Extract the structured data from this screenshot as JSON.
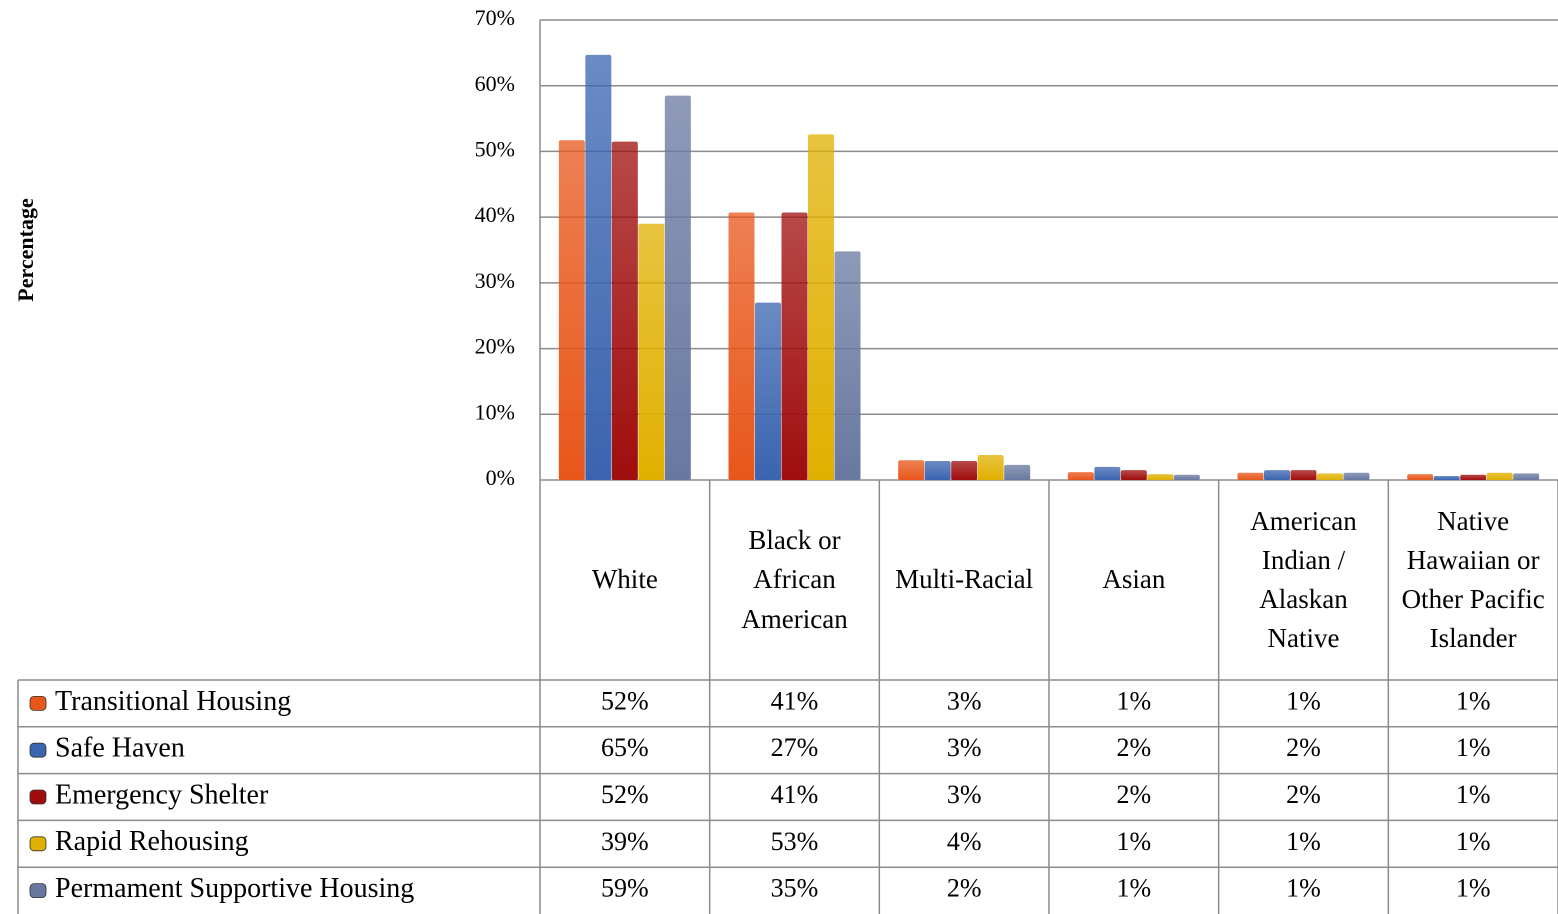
{
  "chart_data": {
    "type": "bar",
    "y_axis_label": "Percentage",
    "categories": [
      "White",
      "Black or African American",
      "Multi-Racial",
      "Asian",
      "American Indian / Alaskan Native",
      "Native Hawaiian or Other Pacific Islander"
    ],
    "series": [
      {
        "name": "Transitional Housing",
        "color": "#e8561a",
        "values": [
          51.7,
          40.7,
          3.0,
          1.2,
          1.1,
          0.9
        ],
        "value_labels": [
          "52%",
          "41%",
          "3%",
          "1%",
          "1%",
          "1%"
        ]
      },
      {
        "name": "Safe Haven",
        "color": "#3a64b0",
        "values": [
          64.7,
          27.0,
          2.9,
          2.0,
          1.5,
          0.6
        ],
        "value_labels": [
          "65%",
          "27%",
          "3%",
          "2%",
          "2%",
          "1%"
        ]
      },
      {
        "name": "Emergency Shelter",
        "color": "#a00d0d",
        "values": [
          51.5,
          40.7,
          2.9,
          1.5,
          1.5,
          0.8
        ],
        "value_labels": [
          "52%",
          "41%",
          "3%",
          "2%",
          "2%",
          "1%"
        ]
      },
      {
        "name": "Rapid Rehousing",
        "color": "#e0b000",
        "values": [
          39.0,
          52.6,
          3.8,
          0.9,
          1.0,
          1.1
        ],
        "value_labels": [
          "39%",
          "53%",
          "4%",
          "1%",
          "1%",
          "1%"
        ]
      },
      {
        "name": "Permament Supportive Housing",
        "color": "#6878a0",
        "values": [
          58.5,
          34.8,
          2.3,
          0.8,
          1.1,
          1.0
        ],
        "value_labels": [
          "59%",
          "35%",
          "2%",
          "1%",
          "1%",
          "1%"
        ]
      }
    ],
    "ylim": [
      0,
      70
    ],
    "yticks": [
      {
        "value": 0,
        "label": "0%"
      },
      {
        "value": 10,
        "label": "10%"
      },
      {
        "value": 20,
        "label": "20%"
      },
      {
        "value": 30,
        "label": "30%"
      },
      {
        "value": 40,
        "label": "40%"
      },
      {
        "value": 50,
        "label": "50%"
      },
      {
        "value": 60,
        "label": "60%"
      },
      {
        "value": 70,
        "label": "70%"
      }
    ],
    "grid": true
  }
}
